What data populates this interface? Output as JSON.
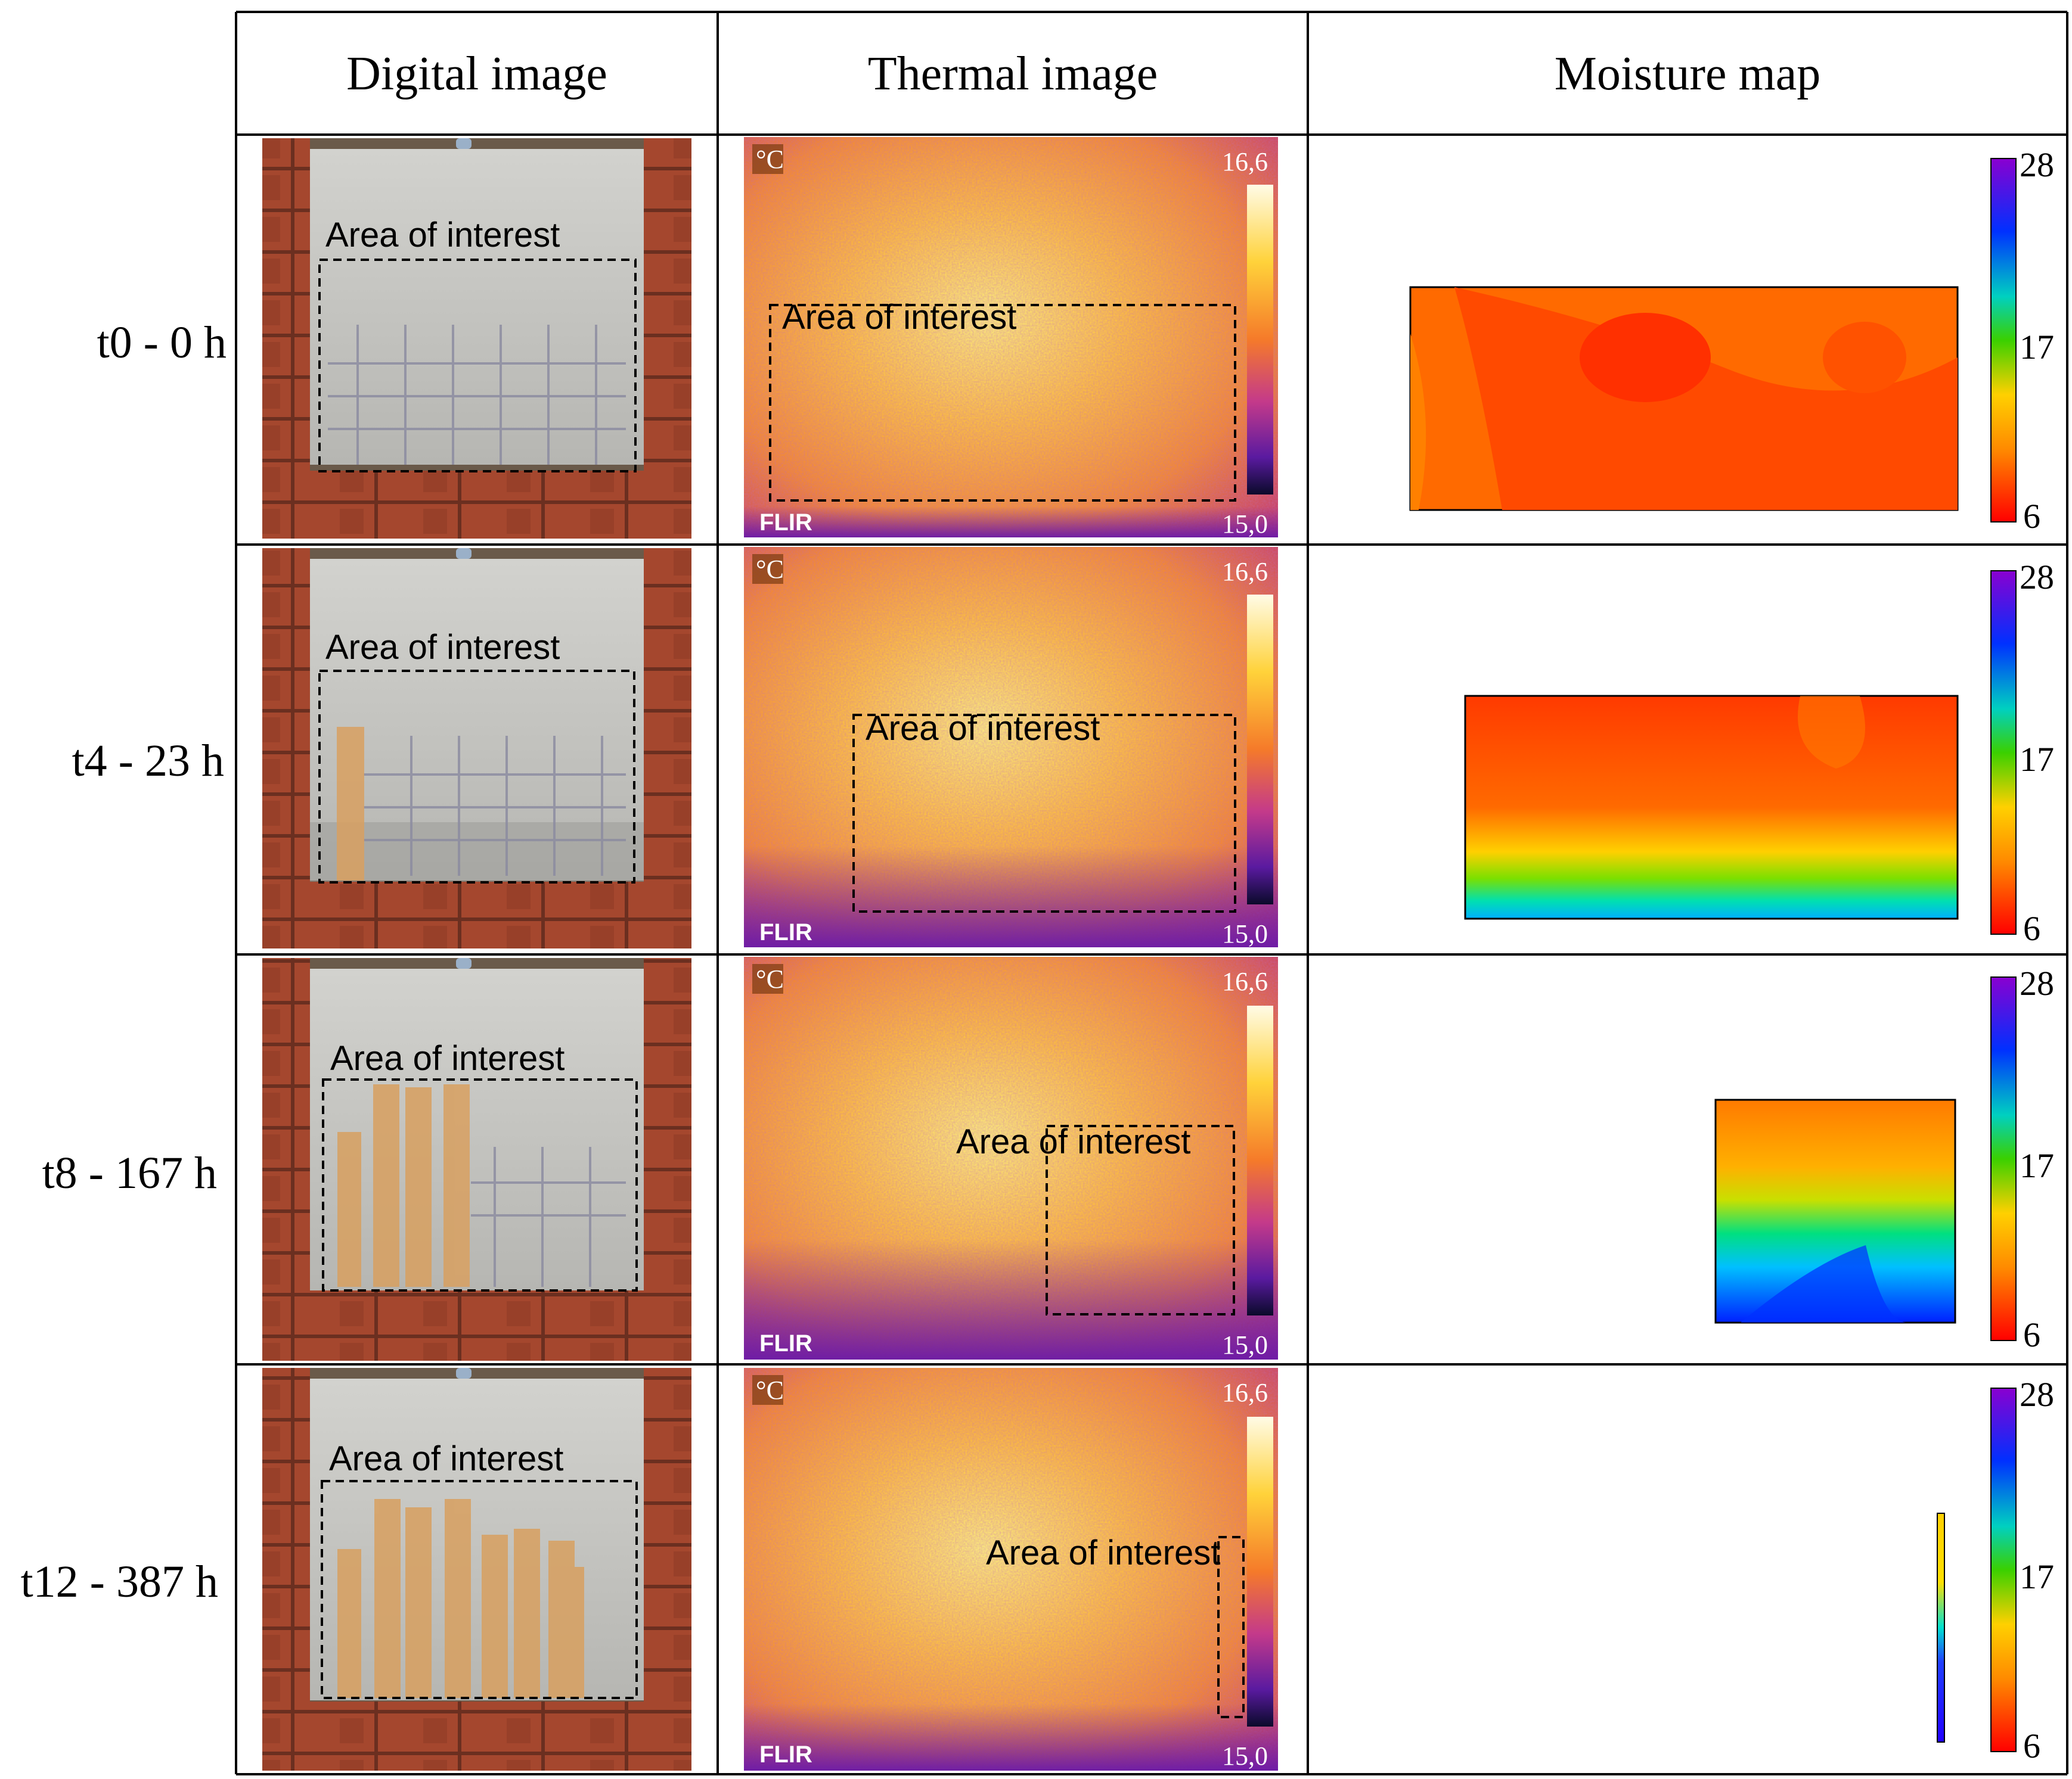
{
  "table": {
    "headers": {
      "digital": "Digital image",
      "thermal": "Thermal image",
      "moisture": "Moisture map"
    },
    "area_label": "Area of interest",
    "rows": [
      {
        "label": "t0 - 0 h"
      },
      {
        "label": "t4 - 23 h"
      },
      {
        "label": "t8 - 167 h"
      },
      {
        "label": "t12 - 387 h"
      }
    ]
  },
  "thermal_overlay": {
    "unit": "°C",
    "max": "16,6",
    "min": "15,0",
    "brand": "FLIR"
  },
  "moisture_scale": {
    "max": "28",
    "mid": "17",
    "min": "6"
  },
  "colors": {
    "moisture_high": "#ff3a00",
    "moisture_mid": "#ff7a00",
    "thermal_warm": "#f5a623",
    "thermal_cool": "#7a1fa2",
    "brick": "#a84a32",
    "wall": "#c6c6c2"
  }
}
